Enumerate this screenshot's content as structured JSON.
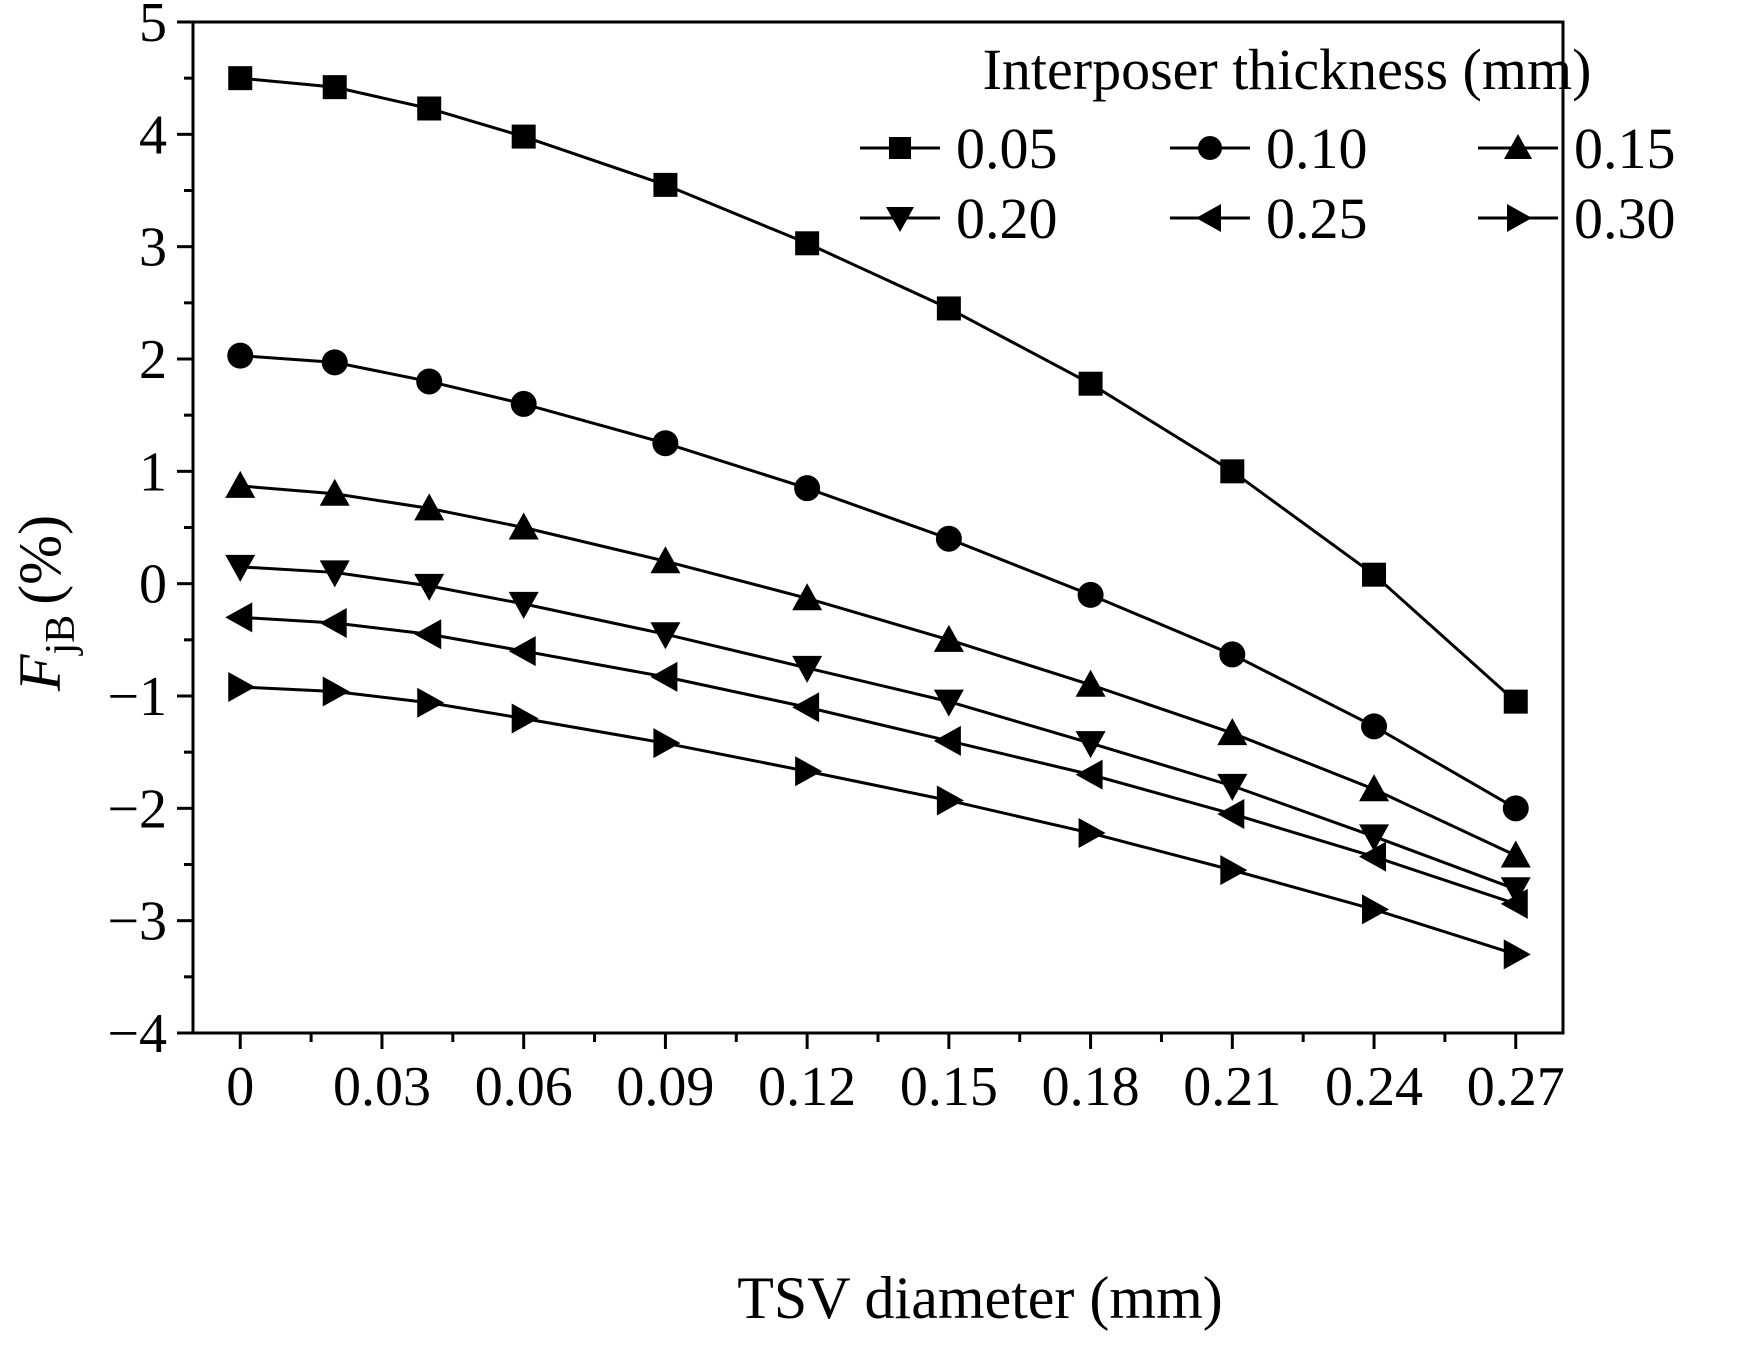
{
  "chart_data": {
    "type": "line",
    "xlabel": "TSV diameter (mm)",
    "ylabel": {
      "main": "F",
      "sub": "jB",
      "unit": "(%)"
    },
    "x": [
      0,
      0.02,
      0.04,
      0.06,
      0.09,
      0.12,
      0.15,
      0.18,
      0.21,
      0.24,
      0.27
    ],
    "xlim": [
      -0.01,
      0.28
    ],
    "ylim": [
      -4,
      5
    ],
    "xticks": [
      "0",
      "0.03",
      "0.06",
      "0.09",
      "0.12",
      "0.15",
      "0.18",
      "0.21",
      "0.24",
      "0.27"
    ],
    "xtick_values": [
      0,
      0.03,
      0.06,
      0.09,
      0.12,
      0.15,
      0.18,
      0.21,
      0.24,
      0.27
    ],
    "yticks": [
      "5",
      "4",
      "3",
      "2",
      "1",
      "0",
      "−1",
      "−2",
      "−3",
      "−4"
    ],
    "ytick_values": [
      5,
      4,
      3,
      2,
      1,
      0,
      -1,
      -2,
      -3,
      -4
    ],
    "grid": false,
    "legend": {
      "title": "Interposer thickness (mm)",
      "placement": "top-right"
    },
    "series": [
      {
        "name": "0.05",
        "marker": "square",
        "values": [
          4.5,
          4.42,
          4.23,
          3.98,
          3.55,
          3.03,
          2.45,
          1.78,
          1.0,
          0.08,
          -1.05
        ]
      },
      {
        "name": "0.10",
        "marker": "circle",
        "values": [
          2.03,
          1.97,
          1.8,
          1.6,
          1.25,
          0.85,
          0.4,
          -0.1,
          -0.63,
          -1.27,
          -2.0
        ]
      },
      {
        "name": "0.15",
        "marker": "triangle-up",
        "values": [
          0.87,
          0.8,
          0.67,
          0.5,
          0.2,
          -0.13,
          -0.5,
          -0.9,
          -1.33,
          -1.83,
          -2.42
        ]
      },
      {
        "name": "0.20",
        "marker": "triangle-down",
        "values": [
          0.15,
          0.1,
          -0.02,
          -0.18,
          -0.45,
          -0.75,
          -1.05,
          -1.42,
          -1.8,
          -2.25,
          -2.72
        ]
      },
      {
        "name": "0.25",
        "marker": "triangle-left",
        "values": [
          -0.3,
          -0.35,
          -0.45,
          -0.6,
          -0.83,
          -1.1,
          -1.4,
          -1.7,
          -2.05,
          -2.43,
          -2.85
        ]
      },
      {
        "name": "0.30",
        "marker": "triangle-right",
        "values": [
          -0.92,
          -0.96,
          -1.06,
          -1.2,
          -1.42,
          -1.67,
          -1.93,
          -2.22,
          -2.55,
          -2.9,
          -3.3
        ]
      }
    ]
  }
}
